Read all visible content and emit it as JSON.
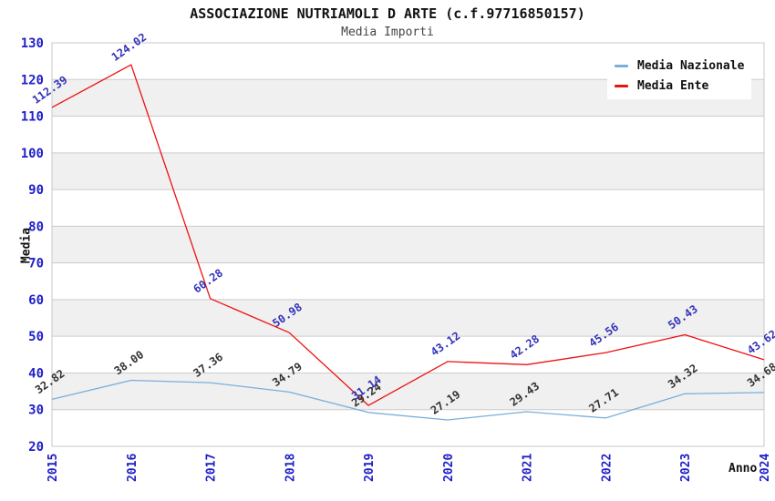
{
  "header": {
    "title": "ASSOCIAZIONE NUTRIAMOLI D ARTE (c.f.97716850157)",
    "subtitle": "Media Importi"
  },
  "axes": {
    "y_title": "Media",
    "x_title": "Anno",
    "y_ticks": [
      20,
      30,
      40,
      50,
      60,
      70,
      80,
      90,
      100,
      110,
      120,
      130
    ],
    "x_ticks": [
      "2015",
      "2016",
      "2017",
      "2018",
      "2019",
      "2020",
      "2021",
      "2022",
      "2023",
      "2024"
    ]
  },
  "legend": {
    "items": [
      {
        "label": "Media Nazionale",
        "series_index": 0
      },
      {
        "label": "Media Ente",
        "series_index": 1
      }
    ]
  },
  "chart_data": {
    "type": "line",
    "title": "ASSOCIAZIONE NUTRIAMOLI D ARTE (c.f.97716850157)",
    "subtitle": "Media Importi",
    "xlabel": "Anno",
    "ylabel": "Media",
    "x": [
      2015,
      2016,
      2017,
      2018,
      2019,
      2020,
      2021,
      2022,
      2023,
      2024
    ],
    "ylim": [
      20,
      130
    ],
    "y_tick_step": 10,
    "grid": "horizontal-bands",
    "legend_position": "top-right-inside",
    "series": [
      {
        "name": "Media Nazionale",
        "color": "#7AAEDC",
        "label_color": "#333333",
        "values": [
          32.82,
          38.0,
          37.36,
          34.79,
          29.24,
          27.19,
          29.43,
          27.71,
          34.32,
          34.68
        ]
      },
      {
        "name": "Media Ente",
        "color": "#EE1111",
        "label_color": "#3333BB",
        "values": [
          112.39,
          124.02,
          60.28,
          50.98,
          31.14,
          43.12,
          42.28,
          45.56,
          50.43,
          43.62
        ]
      }
    ],
    "style": {
      "band_fill": "#F0F0F0",
      "band_alt_fill": "#FFFFFF",
      "grid_color": "#CCCCCC",
      "border_color": "#C8C8C8",
      "tick_label_color": "#2020C8"
    }
  }
}
